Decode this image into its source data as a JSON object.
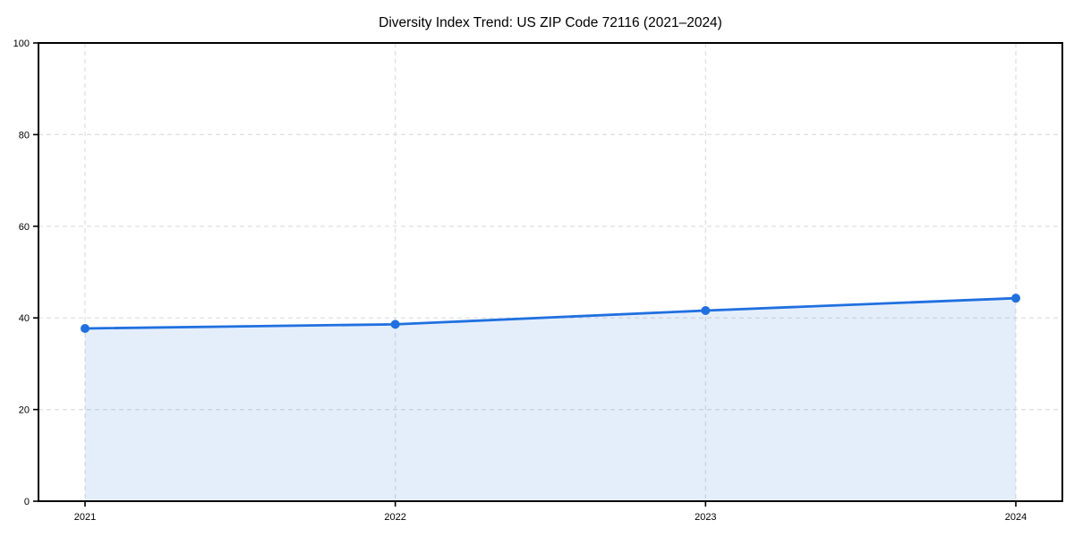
{
  "page": {
    "background_color": "#ffffff"
  },
  "chart_data": {
    "type": "area",
    "title": "Diversity Index Trend: US ZIP Code 72116 (2021–2024)",
    "x": [
      2021,
      2022,
      2023,
      2024
    ],
    "categories": [
      "2021",
      "2022",
      "2023",
      "2024"
    ],
    "series": [
      {
        "name": "Diversity Index",
        "values": [
          37.7,
          38.6,
          41.6,
          44.3
        ]
      }
    ],
    "xlabel": "",
    "ylabel": "",
    "xlim": [
      2020.85,
      2024.15
    ],
    "ylim": [
      0,
      100
    ],
    "yticks": [
      0,
      20,
      40,
      60,
      80,
      100
    ],
    "grid": true,
    "grid_style": "dashed",
    "legend_position": "none",
    "line_color": "#2070e0",
    "marker": "circle",
    "marker_color": "#2070e0",
    "fill_color": "#2070e0",
    "fill_opacity": 0.12,
    "grid_color": "#dedede",
    "spine_color": "#000000",
    "tick_color": "#000000",
    "text_color": "#000000"
  }
}
